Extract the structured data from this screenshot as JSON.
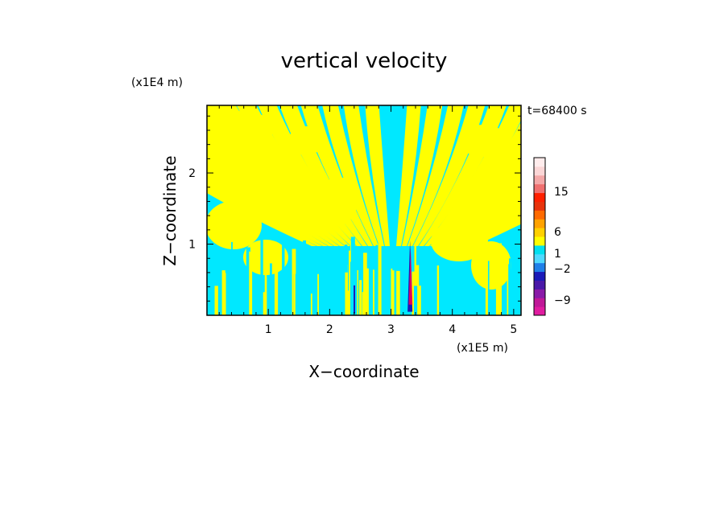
{
  "chart_data": {
    "type": "heatmap",
    "title": "vertical velocity",
    "xlabel": "X−coordinate",
    "ylabel": "Z−coordinate",
    "x_unit": "(x1E5 m)",
    "y_unit": "(x1E4 m)",
    "time_label": "t=68400 s",
    "xlim": [
      0,
      5.12
    ],
    "ylim": [
      0,
      2.95
    ],
    "x_ticks": [
      "1",
      "2",
      "3",
      "4",
      "5"
    ],
    "y_ticks": [
      "1",
      "2"
    ],
    "x_tick_values": [
      1,
      2,
      3,
      4,
      5
    ],
    "y_tick_values": [
      1,
      2
    ],
    "colorbar": {
      "labels": [
        {
          "text": "15",
          "value": 15
        },
        {
          "text": "6",
          "value": 6
        },
        {
          "text": "1",
          "value": 1
        },
        {
          "text": "−2",
          "value": -2
        },
        {
          "text": "−9",
          "value": -9
        }
      ],
      "colors": [
        "#e01ca0",
        "#c01898",
        "#8a1aa8",
        "#4a18a8",
        "#1a1ab8",
        "#1f7fe8",
        "#4fd9ff",
        "#00e0f0",
        "#ffff00",
        "#ffd000",
        "#ffa200",
        "#ff6a00",
        "#e8330c",
        "#ff2000",
        "#f07070",
        "#f4a8a8",
        "#fbd6d6",
        "#ffecec"
      ]
    },
    "field_colors": {
      "positive": "#ffff00",
      "negative": "#00e8ff",
      "strong_negative": "#1a1ab8",
      "strong_positive": "#e00060"
    }
  }
}
